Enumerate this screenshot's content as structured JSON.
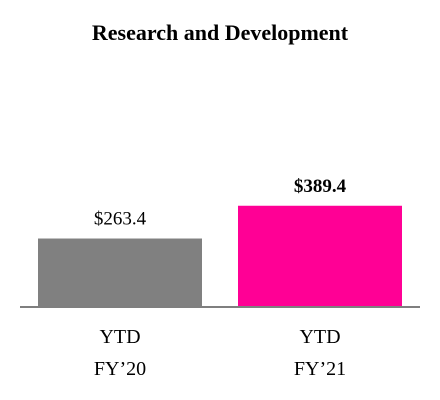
{
  "chart_data": {
    "type": "bar",
    "title": "Research and Development",
    "categories": [
      {
        "line1": "YTD",
        "line2": "FY’20"
      },
      {
        "line1": "YTD",
        "line2": "FY’21"
      }
    ],
    "values": [
      263.4,
      389.4
    ],
    "value_labels": [
      "$263.4",
      "$389.4"
    ],
    "value_label_bold": [
      false,
      true
    ],
    "colors": [
      "#808080",
      "#ff0095"
    ],
    "baseline_color": "#7f7f7f",
    "ylim": [
      0,
      500
    ],
    "grid": false,
    "legend": "none"
  }
}
